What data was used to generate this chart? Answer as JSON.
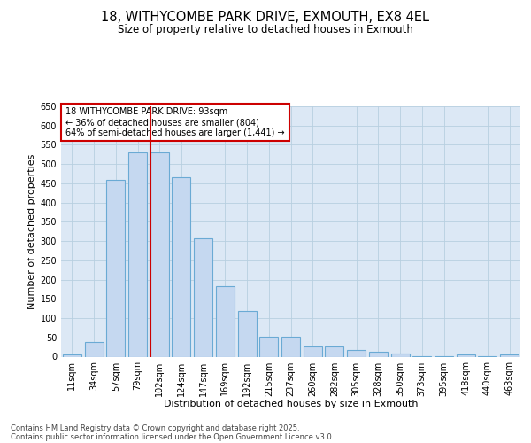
{
  "title": "18, WITHYCOMBE PARK DRIVE, EXMOUTH, EX8 4EL",
  "subtitle": "Size of property relative to detached houses in Exmouth",
  "xlabel": "Distribution of detached houses by size in Exmouth",
  "ylabel": "Number of detached properties",
  "categories": [
    "11sqm",
    "34sqm",
    "57sqm",
    "79sqm",
    "102sqm",
    "124sqm",
    "147sqm",
    "169sqm",
    "192sqm",
    "215sqm",
    "237sqm",
    "260sqm",
    "282sqm",
    "305sqm",
    "328sqm",
    "350sqm",
    "373sqm",
    "395sqm",
    "418sqm",
    "440sqm",
    "463sqm"
  ],
  "values": [
    5,
    37,
    460,
    530,
    530,
    467,
    307,
    184,
    118,
    51,
    51,
    27,
    27,
    17,
    13,
    9,
    2,
    2,
    5,
    2,
    5
  ],
  "bar_color": "#c5d8f0",
  "bar_edge_color": "#6aaad4",
  "vline_color": "#cc0000",
  "vline_x_index": 3.6,
  "annotation_text": "18 WITHYCOMBE PARK DRIVE: 93sqm\n← 36% of detached houses are smaller (804)\n64% of semi-detached houses are larger (1,441) →",
  "annotation_box_color": "#ffffff",
  "annotation_box_edge": "#cc0000",
  "ylim": [
    0,
    650
  ],
  "yticks": [
    0,
    50,
    100,
    150,
    200,
    250,
    300,
    350,
    400,
    450,
    500,
    550,
    600,
    650
  ],
  "background_color": "#ffffff",
  "axes_bg_color": "#dce8f5",
  "grid_color": "#b8cfe0",
  "footer_line1": "Contains HM Land Registry data © Crown copyright and database right 2025.",
  "footer_line2": "Contains public sector information licensed under the Open Government Licence v3.0."
}
